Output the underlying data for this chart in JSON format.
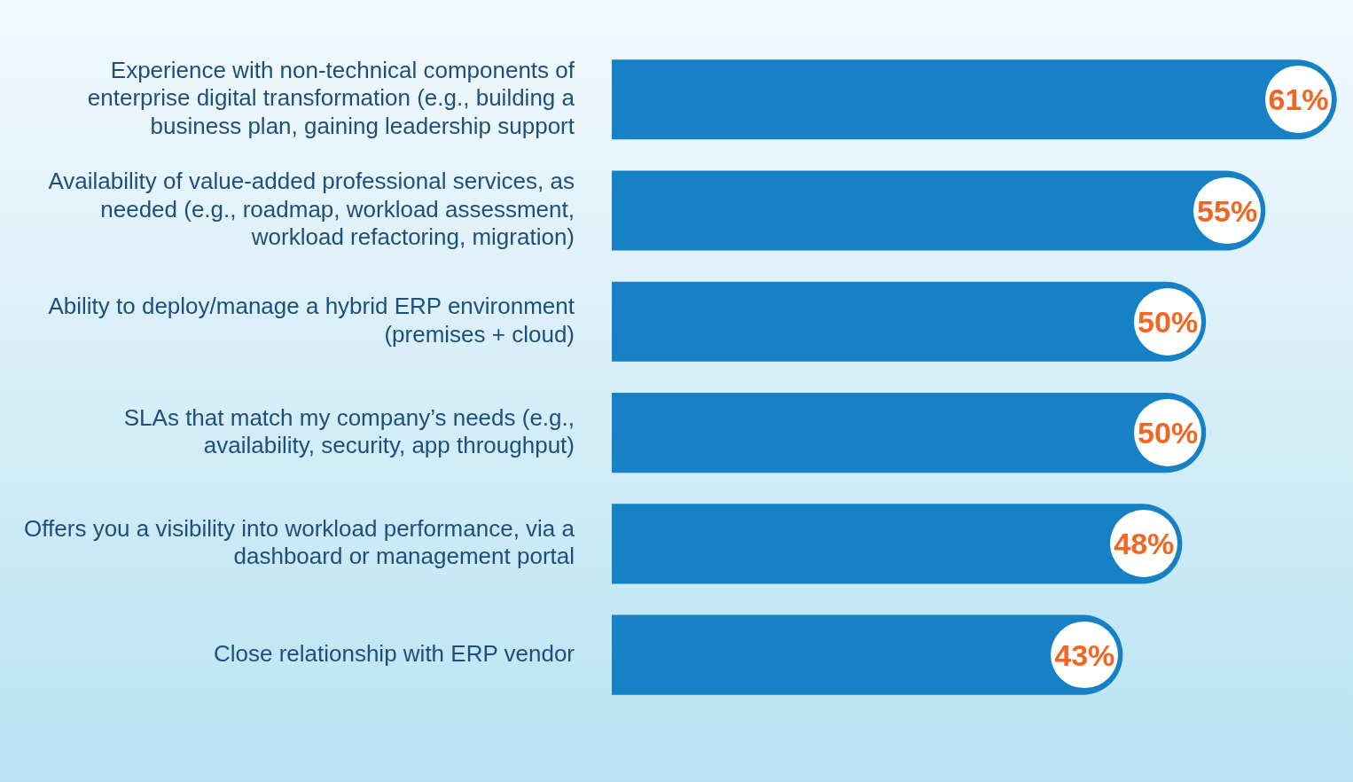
{
  "chart_data": {
    "type": "bar",
    "orientation": "horizontal",
    "categories": [
      "Experience with non-technical components of enterprise digital transformation (e.g., building a business plan, gaining leadership support",
      "Availability of value-added professional services, as needed (e.g., roadmap, workload assessment, workload refactoring, migration)",
      "Ability to deploy/manage a hybrid ERP environment (premises + cloud)",
      "SLAs that match my company’s needs (e.g., availability, security, app throughput)",
      "Offers you a visibility into workload performance, via a dashboard or management portal",
      "Close relationship with ERP vendor"
    ],
    "values": [
      61,
      55,
      50,
      50,
      48,
      43
    ],
    "value_labels": [
      "61%",
      "55%",
      "50%",
      "50%",
      "48%",
      "43%"
    ],
    "color": "#1781c5",
    "grid": false,
    "legend": false
  }
}
